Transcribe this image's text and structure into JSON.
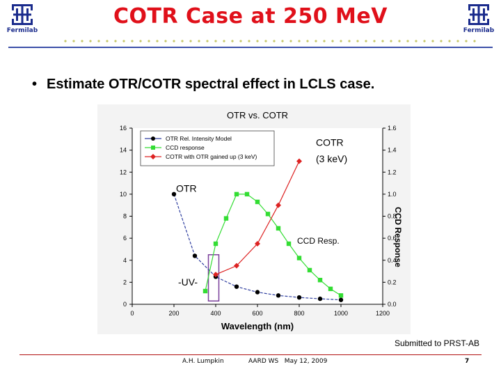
{
  "header": {
    "title": "COTR Case at 250 MeV",
    "logo_text": "Fermilab",
    "accent_color": "#e0101a",
    "rule_color": "#3b4fa8"
  },
  "bullet": {
    "text": "Estimate OTR/COTR spectral effect in LCLS case."
  },
  "chart_data": {
    "type": "line",
    "title": "OTR vs. COTR",
    "xlabel": "Wavelength (nm)",
    "ylabel_left": "",
    "ylabel_right": "CCD Response",
    "xlim": [
      0,
      1200
    ],
    "ylim_left": [
      0,
      16
    ],
    "ylim_right": [
      0,
      1.6
    ],
    "x_ticks": [
      "0",
      "200",
      "400",
      "600",
      "800",
      "1000",
      "1200"
    ],
    "y_ticks_left": [
      "0",
      "2",
      "4",
      "6",
      "8",
      "10",
      "12",
      "14",
      "16"
    ],
    "y_ticks_right": [
      "0.0",
      "0.2",
      "0.4",
      "0.6",
      "0.8",
      "1.0",
      "1.2",
      "1.4",
      "1.6"
    ],
    "grid": false,
    "legend_position": "top-left",
    "series": [
      {
        "name": "OTR Rel. Intensity Model",
        "axis": "left",
        "color": "#000000",
        "line_color": "#2f3fa0",
        "marker": "circle",
        "x": [
          200,
          300,
          400,
          500,
          600,
          700,
          800,
          900,
          1000
        ],
        "y": [
          10,
          4.4,
          2.5,
          1.6,
          1.1,
          0.8,
          0.62,
          0.5,
          0.4
        ]
      },
      {
        "name": "CCD response",
        "axis": "right",
        "color": "#33dd33",
        "line_color": "#33dd33",
        "marker": "square",
        "x": [
          350,
          400,
          450,
          500,
          550,
          600,
          650,
          700,
          750,
          800,
          850,
          900,
          950,
          1000
        ],
        "y": [
          0.12,
          0.55,
          0.78,
          1.0,
          1.0,
          0.93,
          0.82,
          0.69,
          0.55,
          0.42,
          0.31,
          0.22,
          0.14,
          0.08
        ]
      },
      {
        "name": "COTR with OTR gained up (3 keV)",
        "axis": "left",
        "color": "#dd2222",
        "line_color": "#dd2222",
        "marker": "diamond",
        "x": [
          400,
          500,
          600,
          700,
          800
        ],
        "y": [
          2.7,
          3.5,
          5.5,
          9.0,
          13.0
        ]
      }
    ],
    "annotations": [
      {
        "text": "COTR",
        "x": 880,
        "y": 14.4
      },
      {
        "text": "(3 keV)",
        "x": 880,
        "y": 12.9
      },
      {
        "text": "OTR",
        "x": 210,
        "y": 10.2
      },
      {
        "text": "CCD Resp.",
        "x": 790,
        "y": 5.5
      },
      {
        "text": "-UV-",
        "x": 220,
        "y": 1.7
      }
    ],
    "uv_box": {
      "x": [
        365,
        415
      ],
      "y": [
        0.3,
        4.5
      ]
    }
  },
  "footer": {
    "submitted": "Submitted to PRST-AB",
    "author": "A.H. Lumpkin",
    "event": "AARD WS   May 12, 2009",
    "page": "7"
  }
}
